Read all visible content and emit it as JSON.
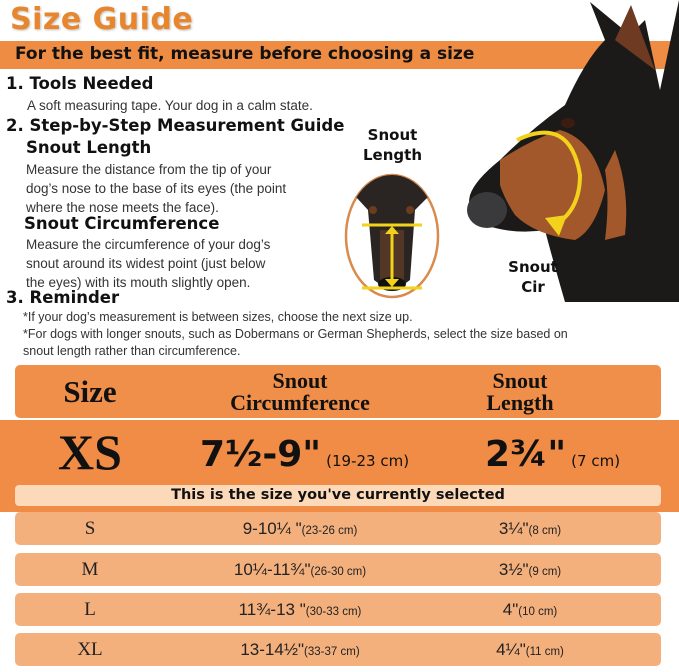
{
  "title": "Size Guide",
  "banner": "For the best fit, measure before choosing a size",
  "sections": {
    "tools": {
      "heading": "1. Tools Needed",
      "text": "A soft measuring tape. Your dog in a calm state."
    },
    "guide": {
      "heading": "2. Step-by-Step Measurement Guide",
      "length_heading": "Snout Length",
      "length_lines": [
        "Measure the distance from the tip of your",
        "dog’s nose to the base of its eyes (the point",
        "where the nose meets the face)."
      ],
      "circ_heading": "Snout Circumference",
      "circ_lines": [
        "Measure the circumference of your dog’s",
        "snout around its widest point (just below",
        "the eyes) with its mouth slightly open."
      ]
    },
    "reminder": {
      "heading": "3. Reminder",
      "lines": [
        "*If your dog’s measurement is between sizes, choose the next size up.",
        "*For dogs with longer snouts, such as Dobermans or German Shepherds, select the size based on",
        "snout length rather than circumference."
      ]
    }
  },
  "image_labels": {
    "snout_length": [
      "Snout",
      "Length"
    ],
    "snout_cir": [
      "Snout",
      "Cir"
    ]
  },
  "table": {
    "headers": {
      "size": "Size",
      "circ": [
        "Snout",
        "Circumference"
      ],
      "length": [
        "Snout",
        "Length"
      ]
    },
    "selected": {
      "size": "XS",
      "circ": "7½-9\"",
      "circ_cm": "(19-23 cm)",
      "length": "2¾\"",
      "length_cm": "(7 cm)",
      "note": "This is the size you've currently selected"
    },
    "rows": [
      {
        "size": "S",
        "circ": "9-10¼ \"",
        "circ_cm": "(23-26 cm)",
        "length": "3¼\"",
        "length_cm": "(8 cm)"
      },
      {
        "size": "M",
        "circ": "10¼-11¾\"",
        "circ_cm": "(26-30 cm)",
        "length": "3½\"",
        "length_cm": "(9 cm)"
      },
      {
        "size": "L",
        "circ": "11¾-13 \"",
        "circ_cm": "(30-33 cm)",
        "length": "4\"",
        "length_cm": "(10 cm)"
      },
      {
        "size": "XL",
        "circ": "13-14½\"",
        "circ_cm": "(33-37 cm)",
        "length": "4¼\"",
        "length_cm": "(11 cm)"
      }
    ]
  },
  "colors": {
    "title": "#e8862e",
    "banner": "#ef8c43",
    "selected_row": "#f08c45",
    "row": "#f4b07c",
    "note": "#fcd9b8",
    "arrow": "#f2d21b"
  }
}
